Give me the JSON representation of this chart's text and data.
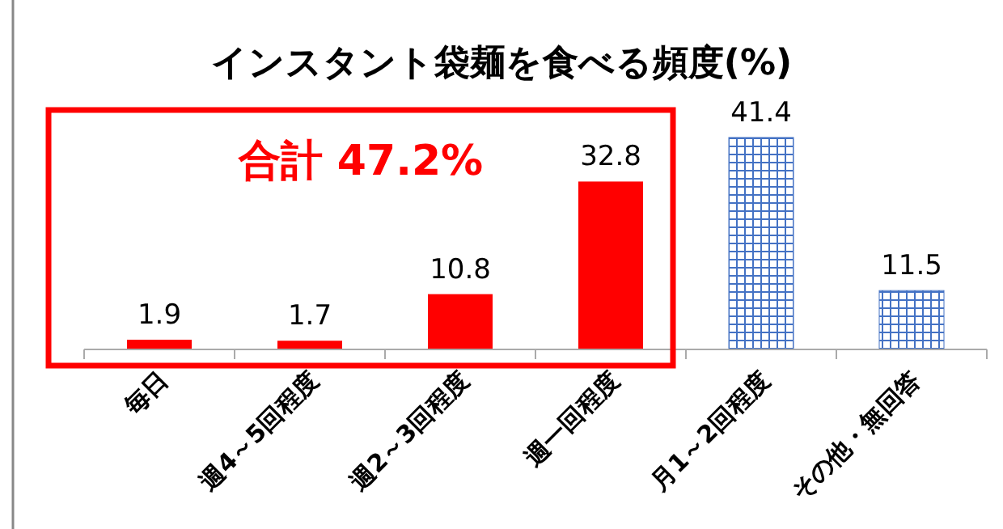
{
  "chart_data": {
    "type": "bar",
    "title": "インスタント袋麺を食べる頻度(%)",
    "categories": [
      "毎日",
      "週4～5回程度",
      "週2～3回程度",
      "週一回程度",
      "月1～2回程度",
      "その他・無回答"
    ],
    "values": [
      1.9,
      1.7,
      10.8,
      32.8,
      41.4,
      11.5
    ],
    "colors": [
      "#ff0000",
      "#ff0000",
      "#ff0000",
      "#ff0000",
      "#4472c4",
      "#4472c4"
    ],
    "data_labels": true,
    "tick_labels": "x",
    "annotations": [
      "合計 47.2%"
    ]
  }
}
